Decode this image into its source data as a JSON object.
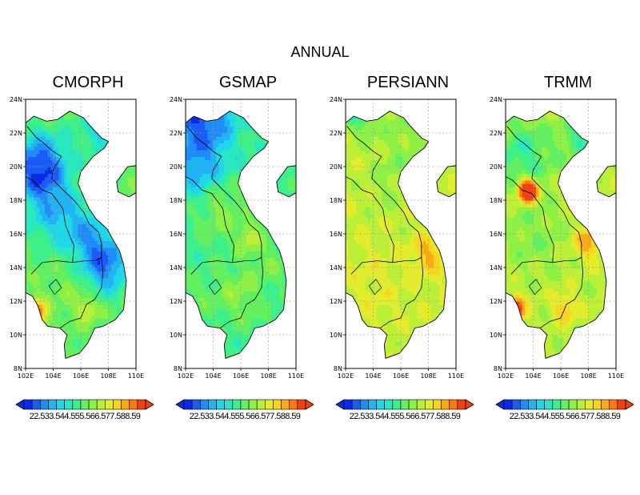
{
  "title": "ANNUAL",
  "panels": [
    {
      "name": "CMORPH"
    },
    {
      "name": "GSMAP"
    },
    {
      "name": "PERSIANN"
    },
    {
      "name": "TRMM"
    }
  ],
  "axes": {
    "lon_ticks": [
      "102E",
      "104E",
      "106E",
      "108E",
      "110E"
    ],
    "lat_ticks": [
      "24N",
      "22N",
      "20N",
      "18N",
      "16N",
      "14N",
      "12N",
      "10N",
      "8N"
    ]
  },
  "colorbar": {
    "labels": "22.533.544.555.566.577.588.59",
    "colors": [
      "#0a2ce8",
      "#1a5cf5",
      "#1f8cf7",
      "#20b4f5",
      "#1ed7e8",
      "#28e8c0",
      "#3ef08a",
      "#63f060",
      "#8ff045",
      "#bcef37",
      "#e2eb2c",
      "#f8d620",
      "#f8ab1a",
      "#f77a14",
      "#f24012"
    ]
  }
}
